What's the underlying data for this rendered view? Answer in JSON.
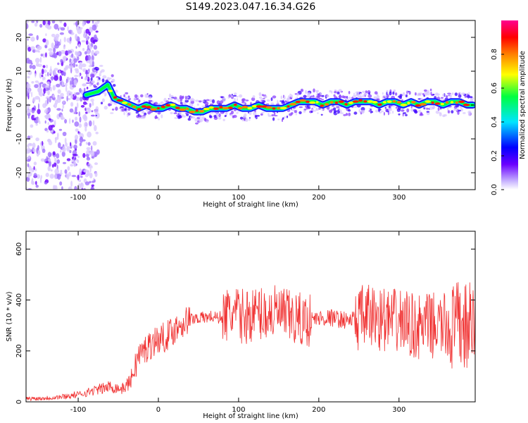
{
  "title": "S149.2023.047.16.34.G26",
  "chart_data": [
    {
      "type": "heatmap",
      "xlabel": "Height of straight line (km)",
      "ylabel": "Frequency (Hz)",
      "xlim": [
        -165,
        395
      ],
      "ylim": [
        -25,
        25
      ],
      "x_ticks": [
        -100,
        0,
        100,
        200,
        300
      ],
      "y_ticks": [
        -20,
        -10,
        0,
        10,
        20
      ],
      "ridge": {
        "x": [
          -90,
          -75,
          -63,
          -55,
          -45,
          -35,
          -25,
          -15,
          -5,
          5,
          15,
          25,
          35,
          45,
          55,
          65,
          75,
          85,
          95,
          105,
          115,
          125,
          135,
          145,
          155,
          165,
          175,
          185,
          195,
          205,
          215,
          225,
          235,
          245,
          255,
          265,
          275,
          285,
          295,
          305,
          315,
          325,
          335,
          345,
          355,
          365,
          375,
          385,
          392
        ],
        "y": [
          3,
          4,
          6,
          2,
          1,
          0,
          -1,
          0,
          -1,
          -1,
          0,
          -1,
          -1,
          -2,
          -2,
          -1,
          -1,
          -1,
          0,
          -1,
          -1,
          0,
          -1,
          -1,
          -1,
          0,
          1,
          1,
          1,
          0,
          1,
          1,
          0,
          1,
          1,
          1,
          0,
          1,
          1,
          0,
          1,
          0,
          1,
          1,
          0,
          1,
          1,
          0,
          0
        ]
      },
      "colorbar": {
        "label": "Normalized spectral amplitude",
        "ticks": [
          "0.0",
          "0.2",
          "0.4",
          "0.6",
          "0.8"
        ],
        "colors": [
          "#ffffff",
          "#c8b4ff",
          "#6a00ff",
          "#0000ff",
          "#00e5ff",
          "#00ff40",
          "#ffff00",
          "#ff8000",
          "#ff0000",
          "#ff0090"
        ]
      }
    },
    {
      "type": "line",
      "xlabel": "Height of straight line (km)",
      "ylabel": "SNR (10 * v/v)",
      "xlim": [
        -165,
        395
      ],
      "ylim": [
        0,
        670
      ],
      "x_ticks": [
        -100,
        0,
        100,
        200,
        300
      ],
      "y_ticks": [
        0,
        200,
        400,
        600
      ],
      "color": "#f03030",
      "series": [
        {
          "x": [
            -165,
            -140,
            -120,
            -100,
            -80,
            -60,
            -45,
            -35,
            -25,
            -15,
            -5,
            5,
            15,
            25,
            35,
            45,
            55,
            65,
            75,
            85,
            95,
            105,
            115,
            125,
            135,
            145,
            155,
            165,
            175,
            185,
            195,
            205,
            215,
            225,
            235,
            245,
            255,
            265,
            275,
            285,
            295,
            305,
            315,
            325,
            335,
            345,
            355,
            365,
            375,
            385,
            392
          ],
          "y": [
            12,
            15,
            20,
            28,
            45,
            60,
            50,
            80,
            180,
            210,
            240,
            250,
            270,
            300,
            320,
            330,
            330,
            335,
            330,
            340,
            345,
            335,
            340,
            350,
            345,
            350,
            340,
            330,
            320,
            320,
            325,
            330,
            330,
            325,
            320,
            325,
            330,
            335,
            330,
            320,
            315,
            320,
            300,
            290,
            300,
            300,
            300,
            290,
            300,
            290,
            300
          ]
        }
      ]
    }
  ]
}
